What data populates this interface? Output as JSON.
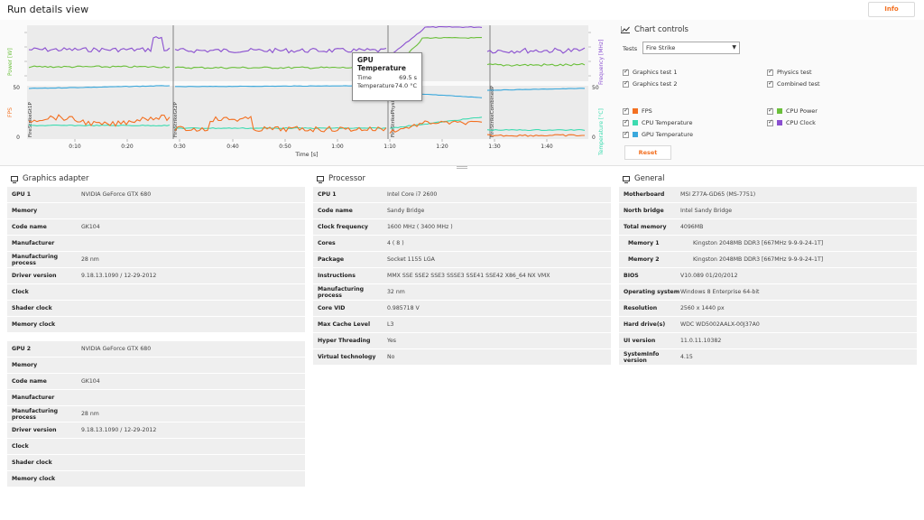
{
  "header": {
    "title": "Run details view",
    "info_label": "Info"
  },
  "chart_data": {
    "type": "line",
    "x_axis": {
      "label": "Time [s]",
      "ticks": [
        "0:10",
        "0:20",
        "0:30",
        "0:40",
        "0:50",
        "1:00",
        "1:10",
        "1:20",
        "1:30",
        "1:40"
      ]
    },
    "top_panel": {
      "left_label": "Power [W]",
      "right_label": "Frequency [MHz]"
    },
    "bottom_panel": {
      "left_label": "FPS",
      "right_label": "Temperature [°C]",
      "left_ticks": [
        "50",
        "0"
      ],
      "right_ticks": [
        "50",
        "0"
      ]
    },
    "segments": [
      "FireStrikeGt1P",
      "FireStrikeGt2P",
      "FireStrikePhysicsP",
      "FireStrikeCombinedP"
    ],
    "colors": {
      "fps": "#f37021",
      "cpu_temp": "#3ddbb0",
      "gpu_temp": "#3aa8dc",
      "cpu_power": "#6abf3a",
      "cpu_clock": "#8a4fd0"
    },
    "tooltip": {
      "title": "GPU Temperature",
      "time_label": "Time",
      "time_value": "69.5 s",
      "temp_label": "Temperature",
      "temp_value": "74.0 °C"
    }
  },
  "controls": {
    "title": "Chart controls",
    "tests_label": "Tests",
    "tests_value": "Fire Strike",
    "tests_list": [
      "Graphics test 1",
      "Physics test",
      "Graphics test 2",
      "Combined test"
    ],
    "series_list": [
      "FPS",
      "CPU Power",
      "CPU Temperature",
      "CPU Clock",
      "GPU Temperature"
    ],
    "reset_label": "Reset"
  },
  "graphics_adapter": {
    "title": "Graphics adapter",
    "gpu1": [
      {
        "k": "GPU 1",
        "v": "NVIDIA GeForce GTX 680"
      },
      {
        "k": "Memory",
        "v": ""
      },
      {
        "k": "Code name",
        "v": "GK104"
      },
      {
        "k": "Manufacturer",
        "v": ""
      },
      {
        "k": "Manufacturing process",
        "v": "28 nm"
      },
      {
        "k": "Driver version",
        "v": "9.18.13.1090 / 12-29-2012"
      },
      {
        "k": "Clock",
        "v": ""
      },
      {
        "k": "Shader clock",
        "v": ""
      },
      {
        "k": "Memory clock",
        "v": ""
      }
    ],
    "gpu2": [
      {
        "k": "GPU 2",
        "v": "NVIDIA GeForce GTX 680"
      },
      {
        "k": "Memory",
        "v": ""
      },
      {
        "k": "Code name",
        "v": "GK104"
      },
      {
        "k": "Manufacturer",
        "v": ""
      },
      {
        "k": "Manufacturing process",
        "v": "28 nm"
      },
      {
        "k": "Driver version",
        "v": "9.18.13.1090 / 12-29-2012"
      },
      {
        "k": "Clock",
        "v": ""
      },
      {
        "k": "Shader clock",
        "v": ""
      },
      {
        "k": "Memory clock",
        "v": ""
      }
    ]
  },
  "processor": {
    "title": "Processor",
    "rows": [
      {
        "k": "CPU 1",
        "v": "Intel Core i7 2600"
      },
      {
        "k": "Code name",
        "v": "Sandy Bridge"
      },
      {
        "k": "Clock frequency",
        "v": "1600 MHz ( 3400 MHz )"
      },
      {
        "k": "Cores",
        "v": "4 ( 8 )"
      },
      {
        "k": "Package",
        "v": "Socket 1155 LGA"
      },
      {
        "k": "Instructions",
        "v": "MMX SSE SSE2 SSE3 SSSE3 SSE41 SSE42 X86_64 NX VMX"
      },
      {
        "k": "Manufacturing process",
        "v": "32 nm"
      },
      {
        "k": "Core VID",
        "v": "0.985718 V"
      },
      {
        "k": "Max Cache Level",
        "v": "L3"
      },
      {
        "k": "Hyper Threading",
        "v": "Yes"
      },
      {
        "k": "Virtual technology",
        "v": "No"
      }
    ]
  },
  "general": {
    "title": "General",
    "rows": [
      {
        "k": "Motherboard",
        "v": "MSI Z77A-GD65 (MS-7751)",
        "sub": false
      },
      {
        "k": "North bridge",
        "v": "Intel Sandy Bridge",
        "sub": false
      },
      {
        "k": "Total memory",
        "v": "4096MB",
        "sub": false
      },
      {
        "k": "Memory 1",
        "v": "Kingston 2048MB  DDR3 [667MHz 9-9-9-24-1T]",
        "sub": true
      },
      {
        "k": "Memory 2",
        "v": "Kingston 2048MB  DDR3 [667MHz 9-9-9-24-1T]",
        "sub": true
      },
      {
        "k": "BIOS",
        "v": "V10.089 01/20/2012",
        "sub": false
      },
      {
        "k": "Operating system",
        "v": "Windows 8 Enterprise 64-bit",
        "sub": false
      },
      {
        "k": "Resolution",
        "v": "2560 x 1440 px",
        "sub": false
      },
      {
        "k": "Hard drive(s)",
        "v": "WDC WD5002AALX-00J37A0",
        "sub": false
      },
      {
        "k": "UI version",
        "v": "11.0.11.10382",
        "sub": false
      },
      {
        "k": "SystemInfo version",
        "v": "4.15",
        "sub": false
      }
    ]
  }
}
